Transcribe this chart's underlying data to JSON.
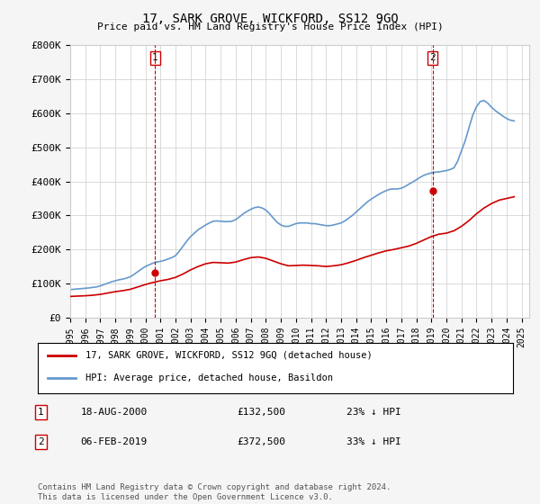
{
  "title": "17, SARK GROVE, WICKFORD, SS12 9GQ",
  "subtitle": "Price paid vs. HM Land Registry's House Price Index (HPI)",
  "ylabel_ticks": [
    "£0",
    "£100K",
    "£200K",
    "£300K",
    "£400K",
    "£500K",
    "£600K",
    "£700K",
    "£800K"
  ],
  "ytick_values": [
    0,
    100000,
    200000,
    300000,
    400000,
    500000,
    600000,
    700000,
    800000
  ],
  "ylim": [
    0,
    800000
  ],
  "xlim_start": 1995.0,
  "xlim_end": 2025.5,
  "background_color": "#f5f5f5",
  "plot_bg_color": "#ffffff",
  "grid_color": "#cccccc",
  "red_line_color": "#cc0000",
  "blue_line_color": "#6699cc",
  "transaction1": {
    "date_label": "1",
    "date": 2000.63,
    "price": 132500,
    "display_date": "18-AUG-2000",
    "display_price": "£132,500",
    "display_pct": "23% ↓ HPI"
  },
  "transaction2": {
    "date_label": "2",
    "date": 2019.09,
    "price": 372500,
    "display_date": "06-FEB-2019",
    "display_price": "£372,500",
    "display_pct": "33% ↓ HPI"
  },
  "legend_line1": "17, SARK GROVE, WICKFORD, SS12 9GQ (detached house)",
  "legend_line2": "HPI: Average price, detached house, Basildon",
  "footer1": "Contains HM Land Registry data © Crown copyright and database right 2024.",
  "footer2": "This data is licensed under the Open Government Licence v3.0.",
  "hpi_x": [
    1995.0,
    1995.25,
    1995.5,
    1995.75,
    1996.0,
    1996.25,
    1996.5,
    1996.75,
    1997.0,
    1997.25,
    1997.5,
    1997.75,
    1998.0,
    1998.25,
    1998.5,
    1998.75,
    1999.0,
    1999.25,
    1999.5,
    1999.75,
    2000.0,
    2000.25,
    2000.5,
    2000.75,
    2001.0,
    2001.25,
    2001.5,
    2001.75,
    2002.0,
    2002.25,
    2002.5,
    2002.75,
    2003.0,
    2003.25,
    2003.5,
    2003.75,
    2004.0,
    2004.25,
    2004.5,
    2004.75,
    2005.0,
    2005.25,
    2005.5,
    2005.75,
    2006.0,
    2006.25,
    2006.5,
    2006.75,
    2007.0,
    2007.25,
    2007.5,
    2007.75,
    2008.0,
    2008.25,
    2008.5,
    2008.75,
    2009.0,
    2009.25,
    2009.5,
    2009.75,
    2010.0,
    2010.25,
    2010.5,
    2010.75,
    2011.0,
    2011.25,
    2011.5,
    2011.75,
    2012.0,
    2012.25,
    2012.5,
    2012.75,
    2013.0,
    2013.25,
    2013.5,
    2013.75,
    2014.0,
    2014.25,
    2014.5,
    2014.75,
    2015.0,
    2015.25,
    2015.5,
    2015.75,
    2016.0,
    2016.25,
    2016.5,
    2016.75,
    2017.0,
    2017.25,
    2017.5,
    2017.75,
    2018.0,
    2018.25,
    2018.5,
    2018.75,
    2019.0,
    2019.25,
    2019.5,
    2019.75,
    2020.0,
    2020.25,
    2020.5,
    2020.75,
    2021.0,
    2021.25,
    2021.5,
    2021.75,
    2022.0,
    2022.25,
    2022.5,
    2022.75,
    2023.0,
    2023.25,
    2023.5,
    2023.75,
    2024.0,
    2024.25,
    2024.5
  ],
  "hpi_y": [
    82000,
    83000,
    84000,
    85000,
    86000,
    87000,
    88500,
    90000,
    93000,
    97000,
    101000,
    105000,
    108000,
    111000,
    113000,
    116000,
    120000,
    127000,
    135000,
    143000,
    150000,
    155000,
    160000,
    163000,
    165000,
    168000,
    172000,
    176000,
    182000,
    195000,
    210000,
    225000,
    238000,
    248000,
    258000,
    265000,
    272000,
    278000,
    283000,
    284000,
    283000,
    282000,
    282000,
    283000,
    288000,
    296000,
    305000,
    312000,
    318000,
    323000,
    325000,
    322000,
    316000,
    305000,
    292000,
    280000,
    272000,
    268000,
    268000,
    272000,
    276000,
    278000,
    278000,
    278000,
    276000,
    276000,
    274000,
    272000,
    270000,
    270000,
    272000,
    275000,
    278000,
    284000,
    292000,
    300000,
    310000,
    320000,
    330000,
    340000,
    348000,
    355000,
    362000,
    368000,
    373000,
    377000,
    378000,
    378000,
    380000,
    385000,
    392000,
    398000,
    405000,
    412000,
    418000,
    422000,
    425000,
    427000,
    428000,
    430000,
    432000,
    435000,
    440000,
    460000,
    490000,
    520000,
    558000,
    595000,
    620000,
    635000,
    638000,
    630000,
    618000,
    608000,
    600000,
    592000,
    585000,
    580000,
    578000
  ],
  "property_x": [
    1995.0,
    1995.5,
    1996.0,
    1996.5,
    1997.0,
    1997.5,
    1998.0,
    1998.5,
    1999.0,
    1999.5,
    2000.0,
    2000.5,
    2001.0,
    2001.5,
    2002.0,
    2002.5,
    2003.0,
    2003.5,
    2004.0,
    2004.5,
    2005.0,
    2005.5,
    2006.0,
    2006.5,
    2007.0,
    2007.5,
    2008.0,
    2008.5,
    2009.0,
    2009.5,
    2010.0,
    2010.5,
    2011.0,
    2011.5,
    2012.0,
    2012.5,
    2013.0,
    2013.5,
    2014.0,
    2014.5,
    2015.0,
    2015.5,
    2016.0,
    2016.5,
    2017.0,
    2017.5,
    2018.0,
    2018.5,
    2019.0,
    2019.5,
    2020.0,
    2020.5,
    2021.0,
    2021.5,
    2022.0,
    2022.5,
    2023.0,
    2023.5,
    2024.0,
    2024.5
  ],
  "property_y": [
    62000,
    63000,
    64000,
    65500,
    68000,
    72000,
    76000,
    79000,
    83000,
    90000,
    97000,
    103000,
    108000,
    112000,
    118000,
    128000,
    140000,
    150000,
    158000,
    162000,
    161000,
    160000,
    163000,
    170000,
    176000,
    178000,
    174000,
    166000,
    158000,
    152000,
    153000,
    154000,
    153000,
    152000,
    150000,
    152000,
    155000,
    161000,
    168000,
    176000,
    183000,
    190000,
    196000,
    200000,
    205000,
    210000,
    218000,
    228000,
    238000,
    245000,
    248000,
    255000,
    268000,
    285000,
    305000,
    322000,
    335000,
    345000,
    350000,
    355000
  ],
  "marker_color": "#cc0000",
  "dashed_line_color": "#cc0000"
}
